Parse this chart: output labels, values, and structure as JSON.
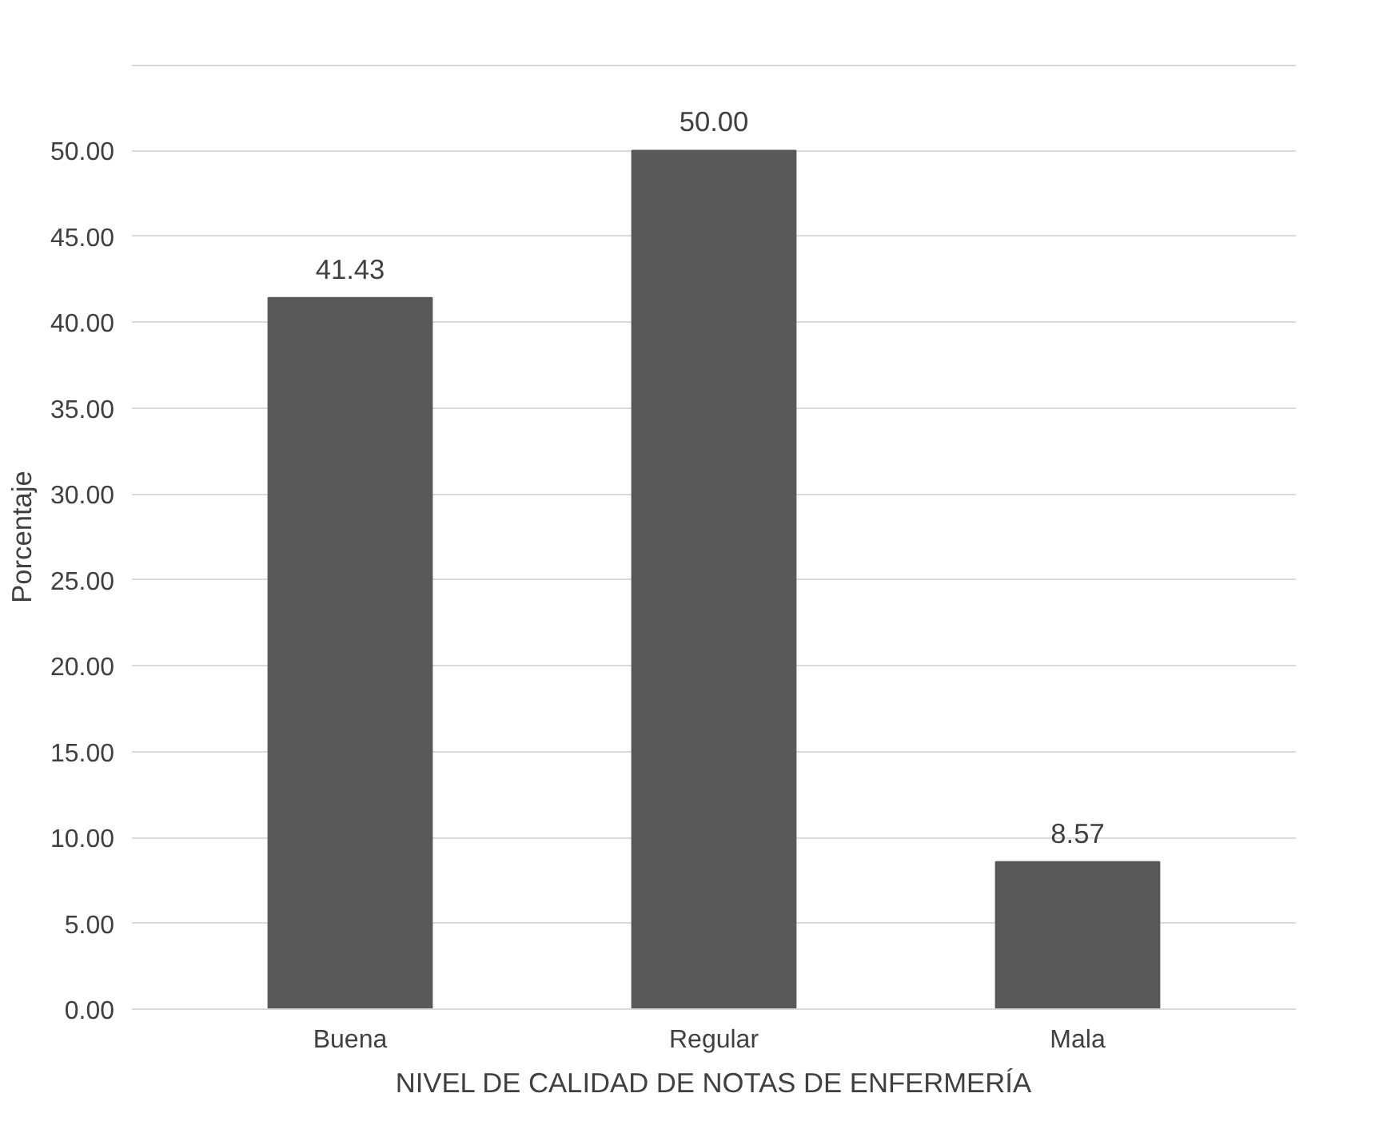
{
  "chart_data": {
    "type": "bar",
    "xlabel": "NIVEL DE CALIDAD DE NOTAS DE ENFERMERÍA",
    "ylabel": "Porcentaje",
    "categories": [
      "Buena",
      "Regular",
      "Mala"
    ],
    "values": [
      41.43,
      50.0,
      8.57
    ],
    "value_labels": [
      "41.43",
      "50.00",
      "8.57"
    ],
    "color": "#595959",
    "ylim": [
      0,
      55
    ],
    "yticks": [
      {
        "value": 0,
        "label": "0.00"
      },
      {
        "value": 5,
        "label": "5.00"
      },
      {
        "value": 10,
        "label": "10.00"
      },
      {
        "value": 15,
        "label": "15.00"
      },
      {
        "value": 20,
        "label": "20.00"
      },
      {
        "value": 25,
        "label": "25.00"
      },
      {
        "value": 30,
        "label": "30.00"
      },
      {
        "value": 35,
        "label": "35.00"
      },
      {
        "value": 40,
        "label": "40.00"
      },
      {
        "value": 45,
        "label": "45.00"
      },
      {
        "value": 50,
        "label": "50.00"
      },
      {
        "value": 55,
        "label": null
      }
    ],
    "grid": "y"
  }
}
